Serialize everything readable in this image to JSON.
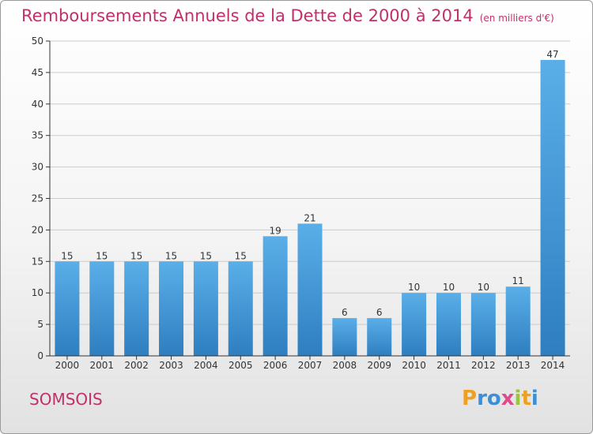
{
  "header": {
    "title": "Remboursements Annuels de la Dette de 2000 à 2014",
    "unit": "(en milliers d'€)"
  },
  "footer": {
    "place": "SOMSOIS",
    "logo": {
      "letters": [
        "P",
        "r",
        "o",
        "x",
        "i",
        "t",
        "i"
      ],
      "colors": [
        "#f0a020",
        "#3a8fd8",
        "#3a8fd8",
        "#e04a8a",
        "#9ac63a",
        "#f0a020",
        "#3a8fd8"
      ]
    }
  },
  "colors": {
    "title": "#c0306a",
    "bar_light": "#5aafe8",
    "bar_dark": "#2e7ec0",
    "grid": "#cccccc",
    "axis": "#333333"
  },
  "chart_data": {
    "type": "bar",
    "title": "Remboursements Annuels de la Dette de 2000 à 2014",
    "xlabel": "",
    "ylabel": "",
    "categories": [
      "2000",
      "2001",
      "2002",
      "2003",
      "2004",
      "2005",
      "2006",
      "2007",
      "2008",
      "2009",
      "2010",
      "2011",
      "2012",
      "2013",
      "2014"
    ],
    "values": [
      15,
      15,
      15,
      15,
      15,
      15,
      19,
      21,
      6,
      6,
      10,
      10,
      10,
      11,
      47
    ],
    "ylim": [
      0,
      50
    ],
    "yticks": [
      0,
      5,
      10,
      15,
      20,
      25,
      30,
      35,
      40,
      45,
      50
    ],
    "grid": true,
    "data_labels": true
  }
}
